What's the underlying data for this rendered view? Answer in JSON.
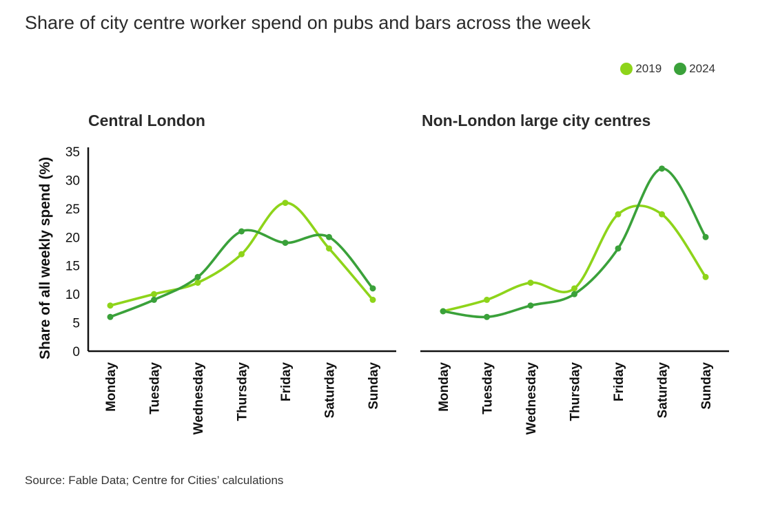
{
  "title": "Share of city centre worker spend on pubs and bars across the week",
  "source": "Source: Fable Data; Centre for Cities’ calculations",
  "legend": [
    {
      "name": "2019",
      "color": "#8ed41a"
    },
    {
      "name": "2024",
      "color": "#3aa13a"
    }
  ],
  "ylabel": "Share of all weekly spend (%)",
  "chart_data": [
    {
      "type": "line",
      "title": "Central London",
      "categories": [
        "Monday",
        "Tuesday",
        "Wednesday",
        "Thursday",
        "Friday",
        "Saturday",
        "Sunday"
      ],
      "ylim": [
        0,
        35
      ],
      "yticks": [
        0,
        5,
        10,
        15,
        20,
        25,
        30,
        35
      ],
      "series": [
        {
          "name": "2019",
          "values": [
            8,
            10,
            12,
            17,
            26,
            18,
            9
          ]
        },
        {
          "name": "2024",
          "values": [
            6,
            9,
            13,
            21,
            19,
            20,
            11
          ]
        }
      ]
    },
    {
      "type": "line",
      "title": "Non-London large city centres",
      "categories": [
        "Monday",
        "Tuesday",
        "Wednesday",
        "Thursday",
        "Friday",
        "Saturday",
        "Sunday"
      ],
      "ylim": [
        0,
        35
      ],
      "series": [
        {
          "name": "2019",
          "values": [
            7,
            9,
            12,
            11,
            24,
            24,
            13
          ]
        },
        {
          "name": "2024",
          "values": [
            7,
            6,
            8,
            10,
            18,
            32,
            20
          ]
        }
      ]
    }
  ]
}
